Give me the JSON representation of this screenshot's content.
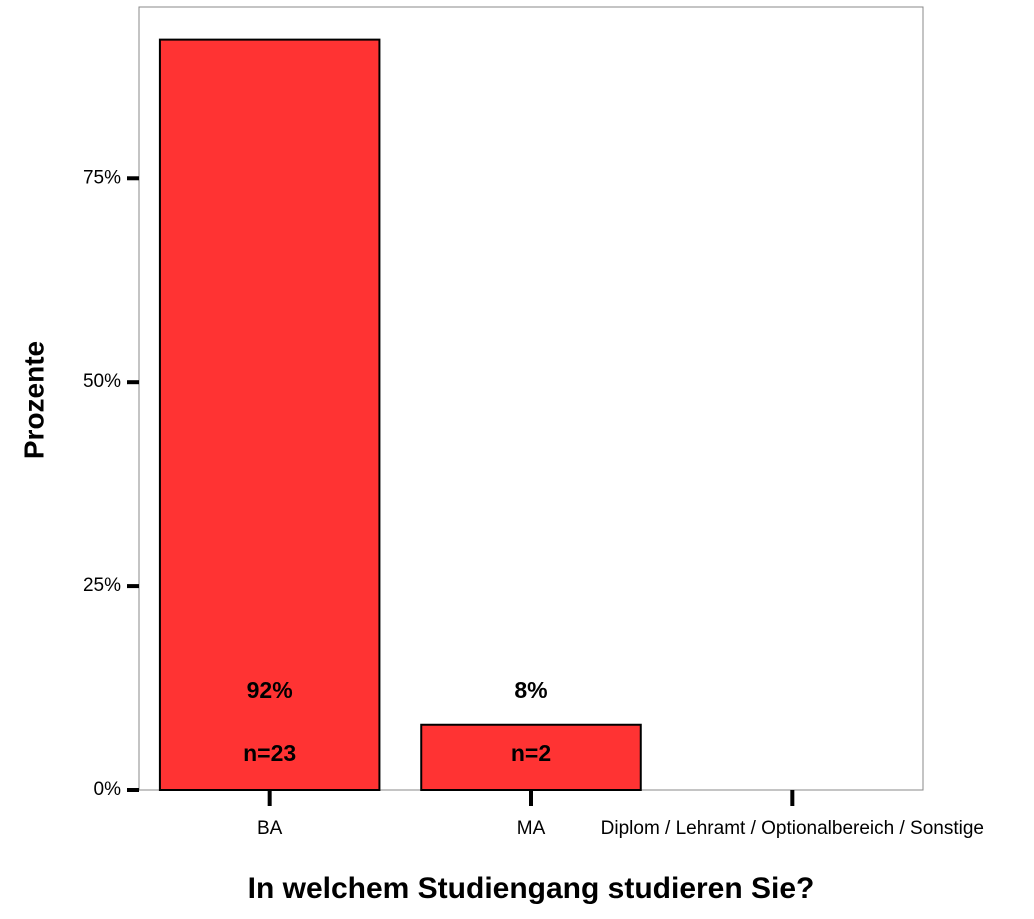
{
  "chart_data": {
    "type": "bar",
    "xlabel": "In welchem Studiengang studieren Sie?",
    "ylabel": "Prozente",
    "categories": [
      "BA",
      "MA",
      "Diplom / Lehramt / Optionalbereich / Sonstige"
    ],
    "values": [
      92,
      8,
      0
    ],
    "value_labels": [
      "92%",
      "8%",
      null
    ],
    "count_labels": [
      "n=23",
      "n=2",
      null
    ],
    "color": "#ff3333",
    "ylim": [
      0,
      96
    ],
    "yticks": [
      {
        "value": 0,
        "label": "0%"
      },
      {
        "value": 25,
        "label": "25%"
      },
      {
        "value": 50,
        "label": "50%"
      },
      {
        "value": 75,
        "label": "75%"
      }
    ],
    "grid": false
  }
}
